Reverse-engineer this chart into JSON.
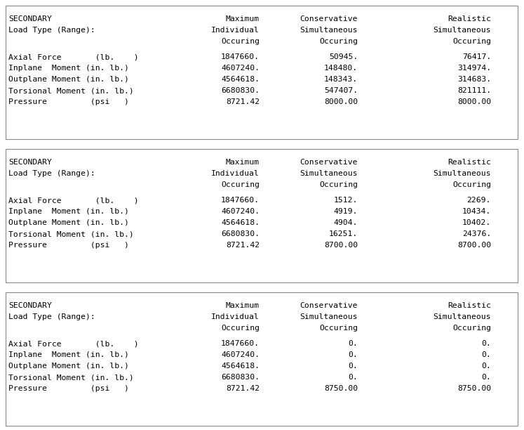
{
  "background_color": "#ffffff",
  "font_size": 8.2,
  "sections": [
    {
      "rows": [
        [
          "Axial Force       (lb.    )",
          "1847660.",
          "50945.",
          "76417."
        ],
        [
          "Inplane  Moment (in. lb.)",
          "4607240.",
          "148480.",
          "314974."
        ],
        [
          "Outplane Moment (in. lb.)",
          "4564618.",
          "148343.",
          "314683."
        ],
        [
          "Torsional Moment (in. lb.)",
          "6680830.",
          "547407.",
          "821111."
        ],
        [
          "Pressure         (psi   )",
          "8721.42",
          "8000.00",
          "8000.00"
        ]
      ]
    },
    {
      "rows": [
        [
          "Axial Force       (lb.    )",
          "1847660.",
          "1512.",
          "2269."
        ],
        [
          "Inplane  Moment (in. lb.)",
          "4607240.",
          "4919.",
          "10434."
        ],
        [
          "Outplane Moment (in. lb.)",
          "4564618.",
          "4904.",
          "10402."
        ],
        [
          "Torsional Moment (in. lb.)",
          "6680830.",
          "16251.",
          "24376."
        ],
        [
          "Pressure         (psi   )",
          "8721.42",
          "8700.00",
          "8700.00"
        ]
      ]
    },
    {
      "rows": [
        [
          "Axial Force       (lb.    )",
          "1847660.",
          "0.",
          "0."
        ],
        [
          "Inplane  Moment (in. lb.)",
          "4607240.",
          "0.",
          "0."
        ],
        [
          "Outplane Moment (in. lb.)",
          "4564618.",
          "0.",
          "0."
        ],
        [
          "Torsional Moment (in. lb.)",
          "6680830.",
          "0.",
          "0."
        ],
        [
          "Pressure         (psi   )",
          "8721.42",
          "8750.00",
          "8750.00"
        ]
      ]
    }
  ],
  "header_lines": [
    "SECONDARY",
    "Load Type (Range):",
    "",
    ""
  ],
  "col2_header": [
    "Maximum",
    "Individual",
    "Occuring"
  ],
  "col3_header": [
    "Conservative",
    "Simultaneous",
    "Occuring"
  ],
  "col4_header": [
    "Realistic",
    "Simultaneous",
    "Occuring"
  ]
}
